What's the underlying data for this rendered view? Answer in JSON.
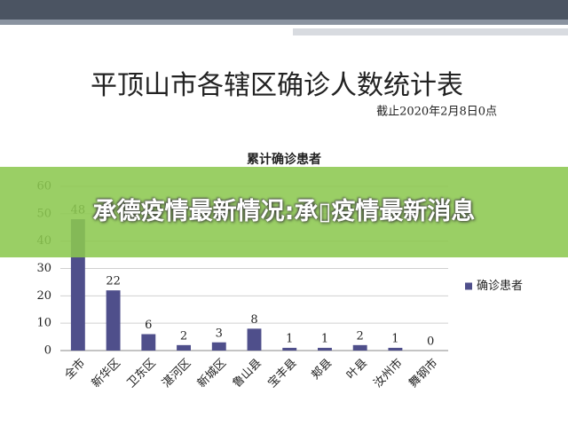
{
  "header": {
    "title": "平顶山市各辖区确诊人数统计表",
    "subtitle": "截止2020年2月8日0点"
  },
  "chart_data": {
    "type": "bar",
    "title": "累计确诊患者",
    "categories": [
      "全市",
      "新华区",
      "卫东区",
      "湛河区",
      "新城区",
      "鲁山县",
      "宝丰县",
      "郏县",
      "叶县",
      "汝州市",
      "舞钢市"
    ],
    "series": [
      {
        "name": "确诊患者",
        "color": "#4f4f8b",
        "values": [
          48,
          22,
          6,
          2,
          3,
          8,
          1,
          1,
          2,
          1,
          0
        ]
      }
    ],
    "ylim": [
      0,
      60
    ],
    "yticks": [
      0,
      10,
      20,
      30,
      40,
      50,
      60
    ],
    "grid": true,
    "legend": "right"
  },
  "banner": {
    "text": "承德疫情最新情况:承▯疫情最新消息"
  }
}
